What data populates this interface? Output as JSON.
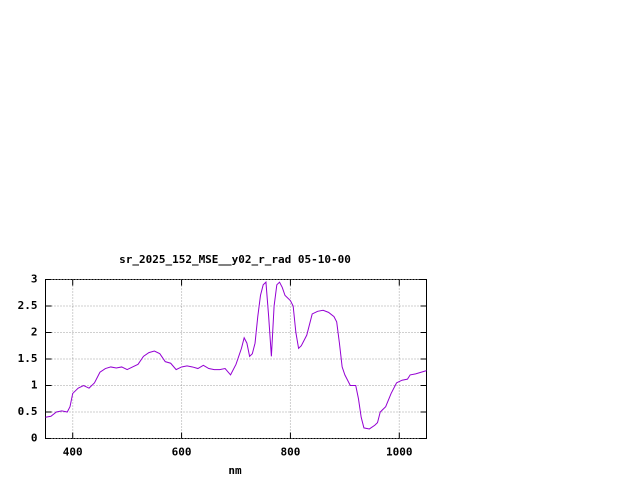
{
  "chart_data": {
    "type": "line",
    "title": "sr_2025_152_MSE__y02_r_rad 05-10-00",
    "x_label": "nm",
    "x": [
      350,
      360,
      370,
      380,
      390,
      395,
      400,
      410,
      420,
      430,
      440,
      450,
      460,
      470,
      480,
      490,
      500,
      510,
      520,
      530,
      540,
      550,
      560,
      570,
      580,
      590,
      600,
      610,
      620,
      630,
      640,
      650,
      660,
      670,
      680,
      690,
      700,
      710,
      715,
      720,
      725,
      730,
      735,
      740,
      745,
      750,
      755,
      760,
      765,
      770,
      775,
      780,
      785,
      790,
      800,
      805,
      810,
      815,
      820,
      830,
      840,
      850,
      860,
      870,
      880,
      885,
      890,
      895,
      900,
      910,
      920,
      925,
      930,
      935,
      945,
      955,
      960,
      965,
      975,
      985,
      995,
      1005,
      1015,
      1020,
      1030,
      1040,
      1050
    ],
    "series": [
      {
        "color": "#9400d3",
        "values": [
          0.4,
          0.42,
          0.5,
          0.52,
          0.5,
          0.6,
          0.85,
          0.95,
          1.0,
          0.95,
          1.05,
          1.25,
          1.32,
          1.35,
          1.33,
          1.35,
          1.3,
          1.35,
          1.4,
          1.55,
          1.62,
          1.65,
          1.6,
          1.45,
          1.42,
          1.3,
          1.35,
          1.37,
          1.35,
          1.32,
          1.38,
          1.32,
          1.3,
          1.3,
          1.32,
          1.2,
          1.4,
          1.7,
          1.9,
          1.8,
          1.55,
          1.6,
          1.8,
          2.3,
          2.7,
          2.9,
          2.95,
          2.3,
          1.55,
          2.5,
          2.9,
          2.95,
          2.85,
          2.7,
          2.6,
          2.5,
          2.0,
          1.7,
          1.75,
          1.95,
          2.35,
          2.4,
          2.42,
          2.38,
          2.3,
          2.2,
          1.8,
          1.35,
          1.2,
          1.0,
          1.0,
          0.75,
          0.4,
          0.2,
          0.18,
          0.25,
          0.3,
          0.5,
          0.6,
          0.85,
          1.05,
          1.1,
          1.12,
          1.2,
          1.22,
          1.25,
          1.28
        ]
      }
    ],
    "xlim": [
      350,
      1050
    ],
    "xticks": [
      400,
      600,
      800,
      1000
    ],
    "ylim": [
      0,
      3
    ],
    "yticks": [
      0,
      0.5,
      1,
      1.5,
      2,
      2.5,
      3
    ],
    "grid": true
  }
}
